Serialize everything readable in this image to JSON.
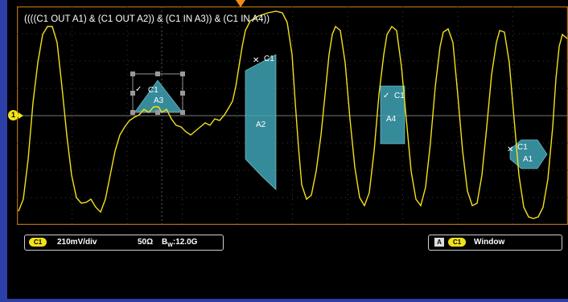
{
  "mask_expression": "((((C1 OUT A1) & (C1 OUT A2)) & (C1 IN A3)) & (C1 IN A4))",
  "channel_marker": "1",
  "masks": [
    {
      "id": "A3",
      "label_top": "C1",
      "label_bottom": "A3",
      "status": "pass",
      "fill": "#3ea3b4"
    },
    {
      "id": "A2",
      "label_top": "C1",
      "label_bottom": "A2",
      "status": "fail",
      "fill": "#3ea3b4"
    },
    {
      "id": "A4",
      "label_top": "C1",
      "label_bottom": "A4",
      "status": "pass",
      "fill": "#3ea3b4"
    },
    {
      "id": "A1",
      "label_top": "C1",
      "label_bottom": "A1",
      "status": "fail",
      "fill": "#3ea3b4"
    }
  ],
  "channel_readout": {
    "channel": "C1",
    "scale": "210mV/div",
    "impedance": "50Ω",
    "bandwidth": "12.0G",
    "bw_prefix": "B",
    "bw_sub": "W"
  },
  "trigger_readout": {
    "icon": "A",
    "channel": "C1",
    "mode": "Window"
  },
  "colors": {
    "trace": "#f2e21a",
    "mask_fill": "#3ea3b4",
    "grid": "#3a3a3a",
    "frame_border": "#b06a18",
    "side_bar": "#2c3ea8"
  }
}
